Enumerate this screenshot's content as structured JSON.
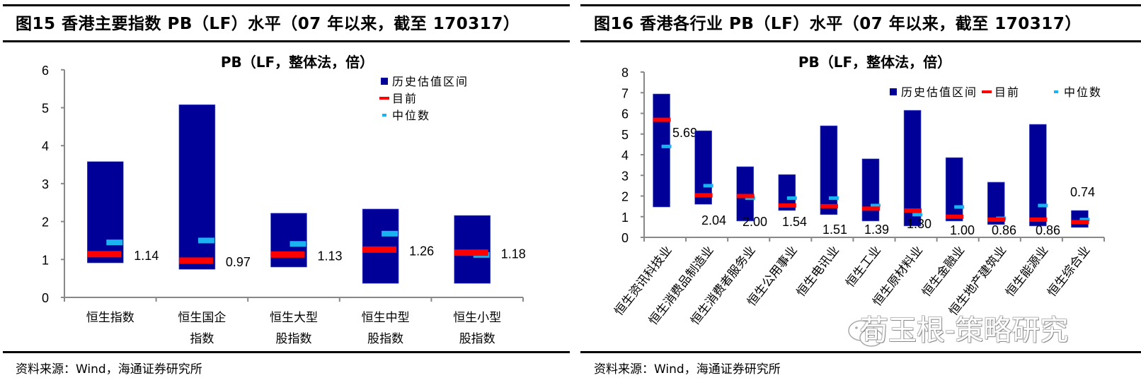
{
  "left": {
    "figure_title": "图15 香港主要指数 PB（LF）水平（07 年以来，截至 170317）",
    "source": "资料来源：Wind，海通证券研究所"
  },
  "right": {
    "figure_title": "图16 香港各行业 PB（LF）水平（07 年以来，截至 170317）",
    "source": "资料来源：Wind，海通证券研究所"
  },
  "legend": {
    "range": "历史估值区间",
    "current": "目前",
    "median": "中位数"
  },
  "colors": {
    "range": "#000099",
    "current": "#ff0000",
    "median": "#1ab2f0",
    "axis": "#888888"
  },
  "watermark": "荀玉根-策略研究",
  "chart_data": [
    {
      "type": "bar",
      "subtype": "floating-range-with-markers",
      "title": "PB（LF，整体法，倍）",
      "xlabel": "",
      "ylabel": "",
      "ylim": [
        0,
        6
      ],
      "yticks": [
        0,
        1,
        2,
        3,
        4,
        5,
        6
      ],
      "grid": false,
      "legend_position": "top-right, vertical",
      "categories": [
        [
          "恒生指数"
        ],
        [
          "恒生国企",
          "指数"
        ],
        [
          "恒生大型",
          "股指数"
        ],
        [
          "恒生中型",
          "股指数"
        ],
        [
          "恒生小型",
          "股指数"
        ]
      ],
      "series": [
        {
          "name": "历史估值区间",
          "low": [
            0.91,
            0.74,
            0.8,
            0.37,
            0.37
          ],
          "high": [
            3.58,
            5.08,
            2.22,
            2.33,
            2.16
          ]
        },
        {
          "name": "目前",
          "values": [
            1.14,
            0.97,
            1.13,
            1.26,
            1.18
          ]
        },
        {
          "name": "中位数",
          "values": [
            1.45,
            1.5,
            1.41,
            1.68,
            1.12
          ]
        }
      ],
      "data_labels": [
        "1.14",
        "0.97",
        "1.13",
        "1.26",
        "1.18"
      ]
    },
    {
      "type": "bar",
      "subtype": "floating-range-with-markers",
      "title": "PB（LF，整体法，倍）",
      "xlabel": "",
      "ylabel": "",
      "ylim": [
        0,
        8
      ],
      "yticks": [
        0,
        1,
        2,
        3,
        4,
        5,
        6,
        7,
        8
      ],
      "grid": false,
      "legend_position": "top-right, horizontal",
      "categories": [
        "恒生资讯科技业",
        "恒生消费品制造业",
        "恒生消费者服务业",
        "恒生公用事业",
        "恒生电讯业",
        "恒生工业",
        "恒生原材料业",
        "恒生金融业",
        "恒生地产建筑业",
        "恒生能源业",
        "恒生综合业"
      ],
      "series": [
        {
          "name": "历史估值区间",
          "low": [
            1.47,
            1.6,
            0.79,
            1.3,
            1.1,
            0.79,
            0.55,
            0.79,
            0.62,
            0.55,
            0.48
          ],
          "high": [
            6.94,
            5.16,
            3.42,
            3.04,
            5.4,
            3.8,
            6.15,
            3.86,
            2.67,
            5.47,
            1.3
          ]
        },
        {
          "name": "目前",
          "values": [
            5.69,
            2.04,
            2.0,
            1.54,
            1.51,
            1.39,
            1.3,
            1.0,
            0.86,
            0.86,
            0.74
          ]
        },
        {
          "name": "中位数",
          "values": [
            4.4,
            2.5,
            1.9,
            1.9,
            1.9,
            1.54,
            1.1,
            1.47,
            0.92,
            1.54,
            0.86
          ]
        }
      ],
      "data_labels": [
        "5.69",
        "2.04",
        "2.00",
        "1.54",
        "1.51",
        "1.39",
        "1.30",
        "1.00",
        "0.86",
        "0.86",
        "0.74"
      ]
    }
  ]
}
